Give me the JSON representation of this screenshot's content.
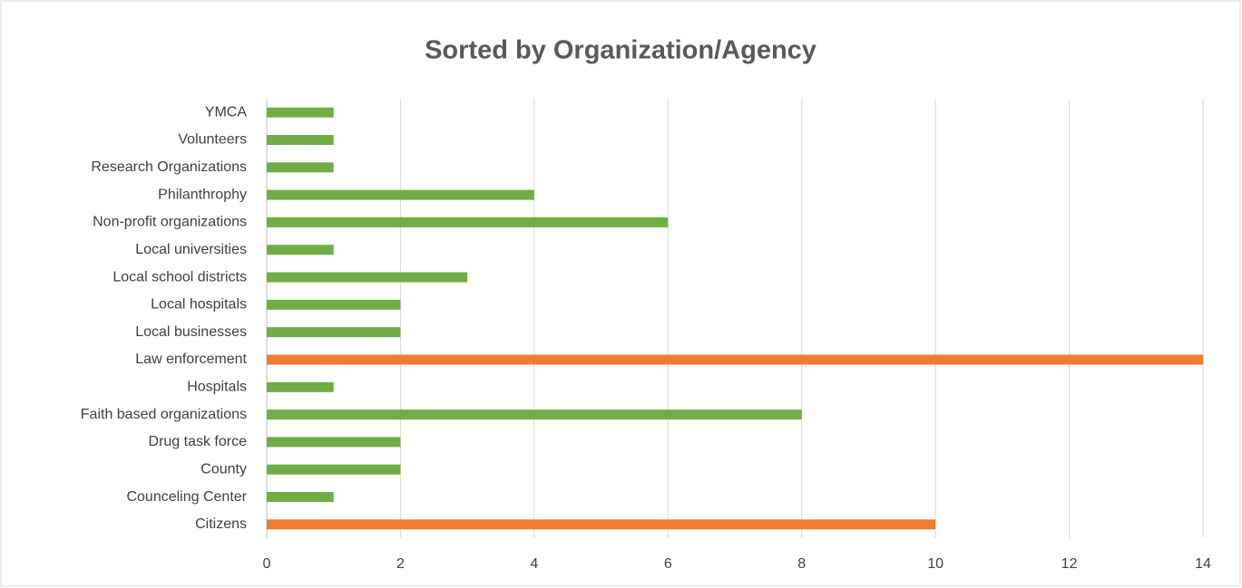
{
  "chart_data": {
    "type": "hbar",
    "title": "Sorted by Organization/Agency",
    "categories": [
      "Citizens",
      "Counceling Center",
      "County",
      "Drug task force",
      "Faith based organizations",
      "Hospitals",
      "Law enforcement",
      "Local businesses",
      "Local hospitals",
      "Local school districts",
      "Local universities ",
      "Non-profit organizations ",
      "Philanthrophy",
      "Research Organizations",
      "Volunteers",
      "YMCA"
    ],
    "values": [
      10,
      1,
      2,
      2,
      8,
      1,
      14,
      2,
      2,
      3,
      1,
      6,
      4,
      1,
      1,
      1
    ],
    "colors": [
      "#ed7d31",
      "#70ad47",
      "#70ad47",
      "#70ad47",
      "#70ad47",
      "#70ad47",
      "#ed7d31",
      "#70ad47",
      "#70ad47",
      "#70ad47",
      "#70ad47",
      "#70ad47",
      "#70ad47",
      "#70ad47",
      "#70ad47",
      "#70ad47"
    ],
    "xlim": [
      0,
      14
    ],
    "xticks": [
      0,
      2,
      4,
      6,
      8,
      10,
      12,
      14
    ],
    "grid": true
  }
}
